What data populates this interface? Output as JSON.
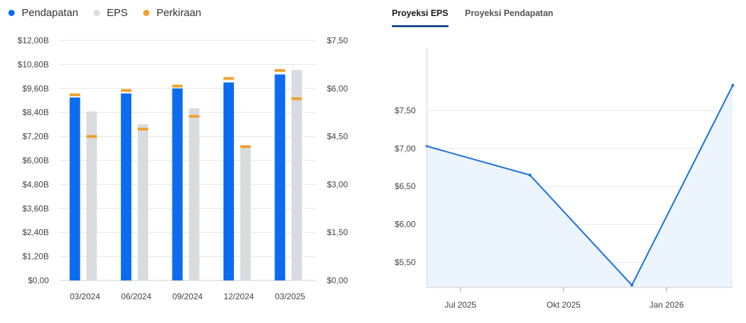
{
  "legend": {
    "items": [
      {
        "label": "Pendapatan",
        "color": "#0b6cf0"
      },
      {
        "label": "EPS",
        "color": "#d9dcdf"
      },
      {
        "label": "Perkiraan",
        "color": "#f0a030"
      }
    ]
  },
  "tabs": [
    {
      "label": "Proyeksi EPS",
      "active": true
    },
    {
      "label": "Proyeksi Pendapatan",
      "active": false
    }
  ],
  "chart_data": [
    {
      "type": "bar",
      "categories": [
        "03/2024",
        "06/2024",
        "09/2024",
        "12/2024",
        "03/2025"
      ],
      "left_axis": {
        "ticks": [
          "$0,00",
          "$1,20B",
          "$2,40B",
          "$3,60B",
          "$4,80B",
          "$6,00B",
          "$7,20B",
          "$8,40B",
          "$9,60B",
          "$10,80B",
          "$12,00B"
        ],
        "ylim": [
          0,
          12
        ]
      },
      "right_axis": {
        "ticks": [
          "$0,00",
          "$1,50",
          "$3,00",
          "$4,50",
          "$6,00",
          "$7,50"
        ],
        "ylim": [
          0,
          7.5
        ]
      },
      "series": [
        {
          "name": "Pendapatan",
          "axis": "left",
          "values": [
            9.15,
            9.35,
            9.6,
            9.9,
            10.3
          ],
          "estimates": [
            9.28,
            9.5,
            9.72,
            10.1,
            10.5
          ]
        },
        {
          "name": "EPS",
          "axis": "right",
          "values": [
            5.28,
            4.88,
            5.38,
            4.23,
            6.58
          ],
          "estimates": [
            4.5,
            4.73,
            5.13,
            4.18,
            5.68
          ]
        }
      ],
      "grid": true,
      "legend_position": "top-left"
    },
    {
      "type": "line",
      "x_ticks": [
        "Jul 2025",
        "Okt 2025",
        "Jan 2026"
      ],
      "x_dates": [
        "2025-06-01",
        "2025-09-01",
        "2025-12-01",
        "2026-03-01"
      ],
      "y_ticks": [
        "$5,50",
        "$6,00",
        "$6,50",
        "$7,00",
        "$7,50"
      ],
      "values": [
        7.03,
        6.65,
        5.2,
        7.83
      ],
      "ylim": [
        5.17,
        8.33
      ],
      "color": "#1a6fdc",
      "area_fill": "#ecf4fd",
      "grid": true
    }
  ]
}
